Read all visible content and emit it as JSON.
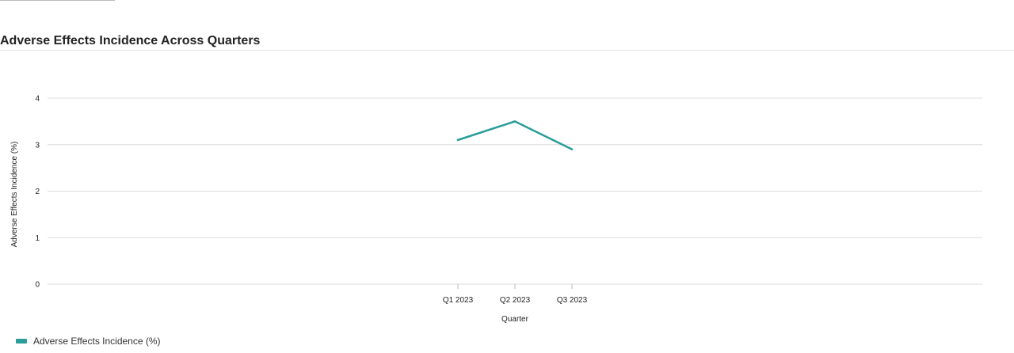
{
  "colors": {
    "series": "#2a9d99",
    "grid": "#dcdcdc",
    "text": "#222222"
  },
  "legend": {
    "label": "Adverse Effects Incidence (%)"
  },
  "chart_data": {
    "type": "line",
    "title": "Adverse Effects Incidence Across Quarters",
    "xlabel": "Quarter",
    "ylabel": "Adverse Effects Incidence (%)",
    "categories": [
      "Q1 2023",
      "Q2 2023",
      "Q3 2023"
    ],
    "series": [
      {
        "name": "Adverse Effects Incidence (%)",
        "values": [
          3.1,
          3.5,
          2.9
        ]
      }
    ],
    "ylim": [
      0,
      4
    ],
    "yticks": [
      "0",
      "1",
      "2",
      "3",
      "4"
    ],
    "grid": true,
    "legend_position": "bottom-left"
  }
}
